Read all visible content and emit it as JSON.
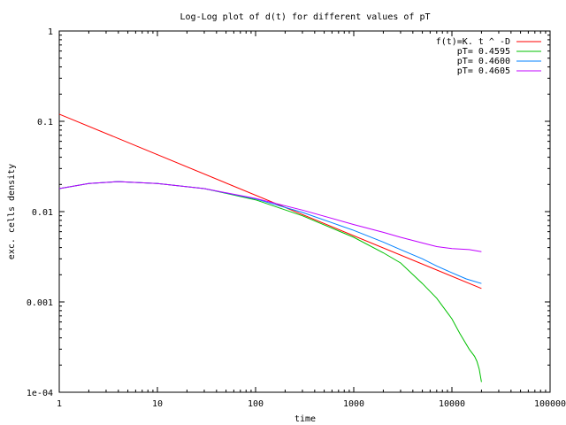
{
  "chart_data": {
    "type": "line",
    "title": "Log-Log plot of d(t) for different values of pT",
    "xlabel": "time",
    "ylabel": "exc. cells density",
    "xscale": "log",
    "yscale": "log",
    "xlim": [
      1,
      100000
    ],
    "ylim": [
      0.0001,
      1
    ],
    "grid": false,
    "legend_position": "top-right",
    "x_ticks": [
      1,
      10,
      100,
      1000,
      10000,
      100000
    ],
    "x_tick_labels": [
      "1",
      "10",
      "100",
      "1000",
      "10000",
      "100000"
    ],
    "y_ticks": [
      0.0001,
      0.001,
      0.01,
      0.1,
      1
    ],
    "y_tick_labels": [
      "1e-04",
      "0.001",
      "0.01",
      "0.1",
      "1"
    ],
    "series": [
      {
        "name": "f(t)=K. t ^ -D",
        "color": "#ff0000",
        "x": [
          1,
          20000
        ],
        "y": [
          0.12,
          0.00141
        ]
      },
      {
        "name": "pT= 0.4595",
        "color": "#00c000",
        "x": [
          1,
          2,
          4,
          10,
          30,
          100,
          300,
          1000,
          2000,
          3000,
          5000,
          7000,
          10000,
          12000,
          15000,
          17000,
          18000,
          19000,
          20000
        ],
        "y": [
          0.018,
          0.0205,
          0.0215,
          0.0205,
          0.018,
          0.0135,
          0.009,
          0.0052,
          0.0035,
          0.0027,
          0.0016,
          0.0011,
          0.00065,
          0.00045,
          0.0003,
          0.00025,
          0.00022,
          0.00018,
          0.00013
        ]
      },
      {
        "name": "pT= 0.4600",
        "color": "#0080ff",
        "x": [
          1,
          2,
          4,
          10,
          30,
          100,
          300,
          1000,
          2000,
          3000,
          5000,
          7000,
          10000,
          14000,
          20000
        ],
        "y": [
          0.018,
          0.0205,
          0.0215,
          0.0205,
          0.018,
          0.0138,
          0.0098,
          0.0062,
          0.0046,
          0.0038,
          0.003,
          0.0025,
          0.0021,
          0.0018,
          0.0016
        ]
      },
      {
        "name": "pT= 0.4605",
        "color": "#c000ff",
        "x": [
          1,
          2,
          4,
          10,
          30,
          100,
          300,
          1000,
          2000,
          3000,
          5000,
          7000,
          10000,
          15000,
          20000
        ],
        "y": [
          0.018,
          0.0205,
          0.0215,
          0.0205,
          0.018,
          0.014,
          0.0104,
          0.0072,
          0.0059,
          0.0052,
          0.0045,
          0.0041,
          0.0039,
          0.0038,
          0.0036
        ]
      }
    ]
  }
}
